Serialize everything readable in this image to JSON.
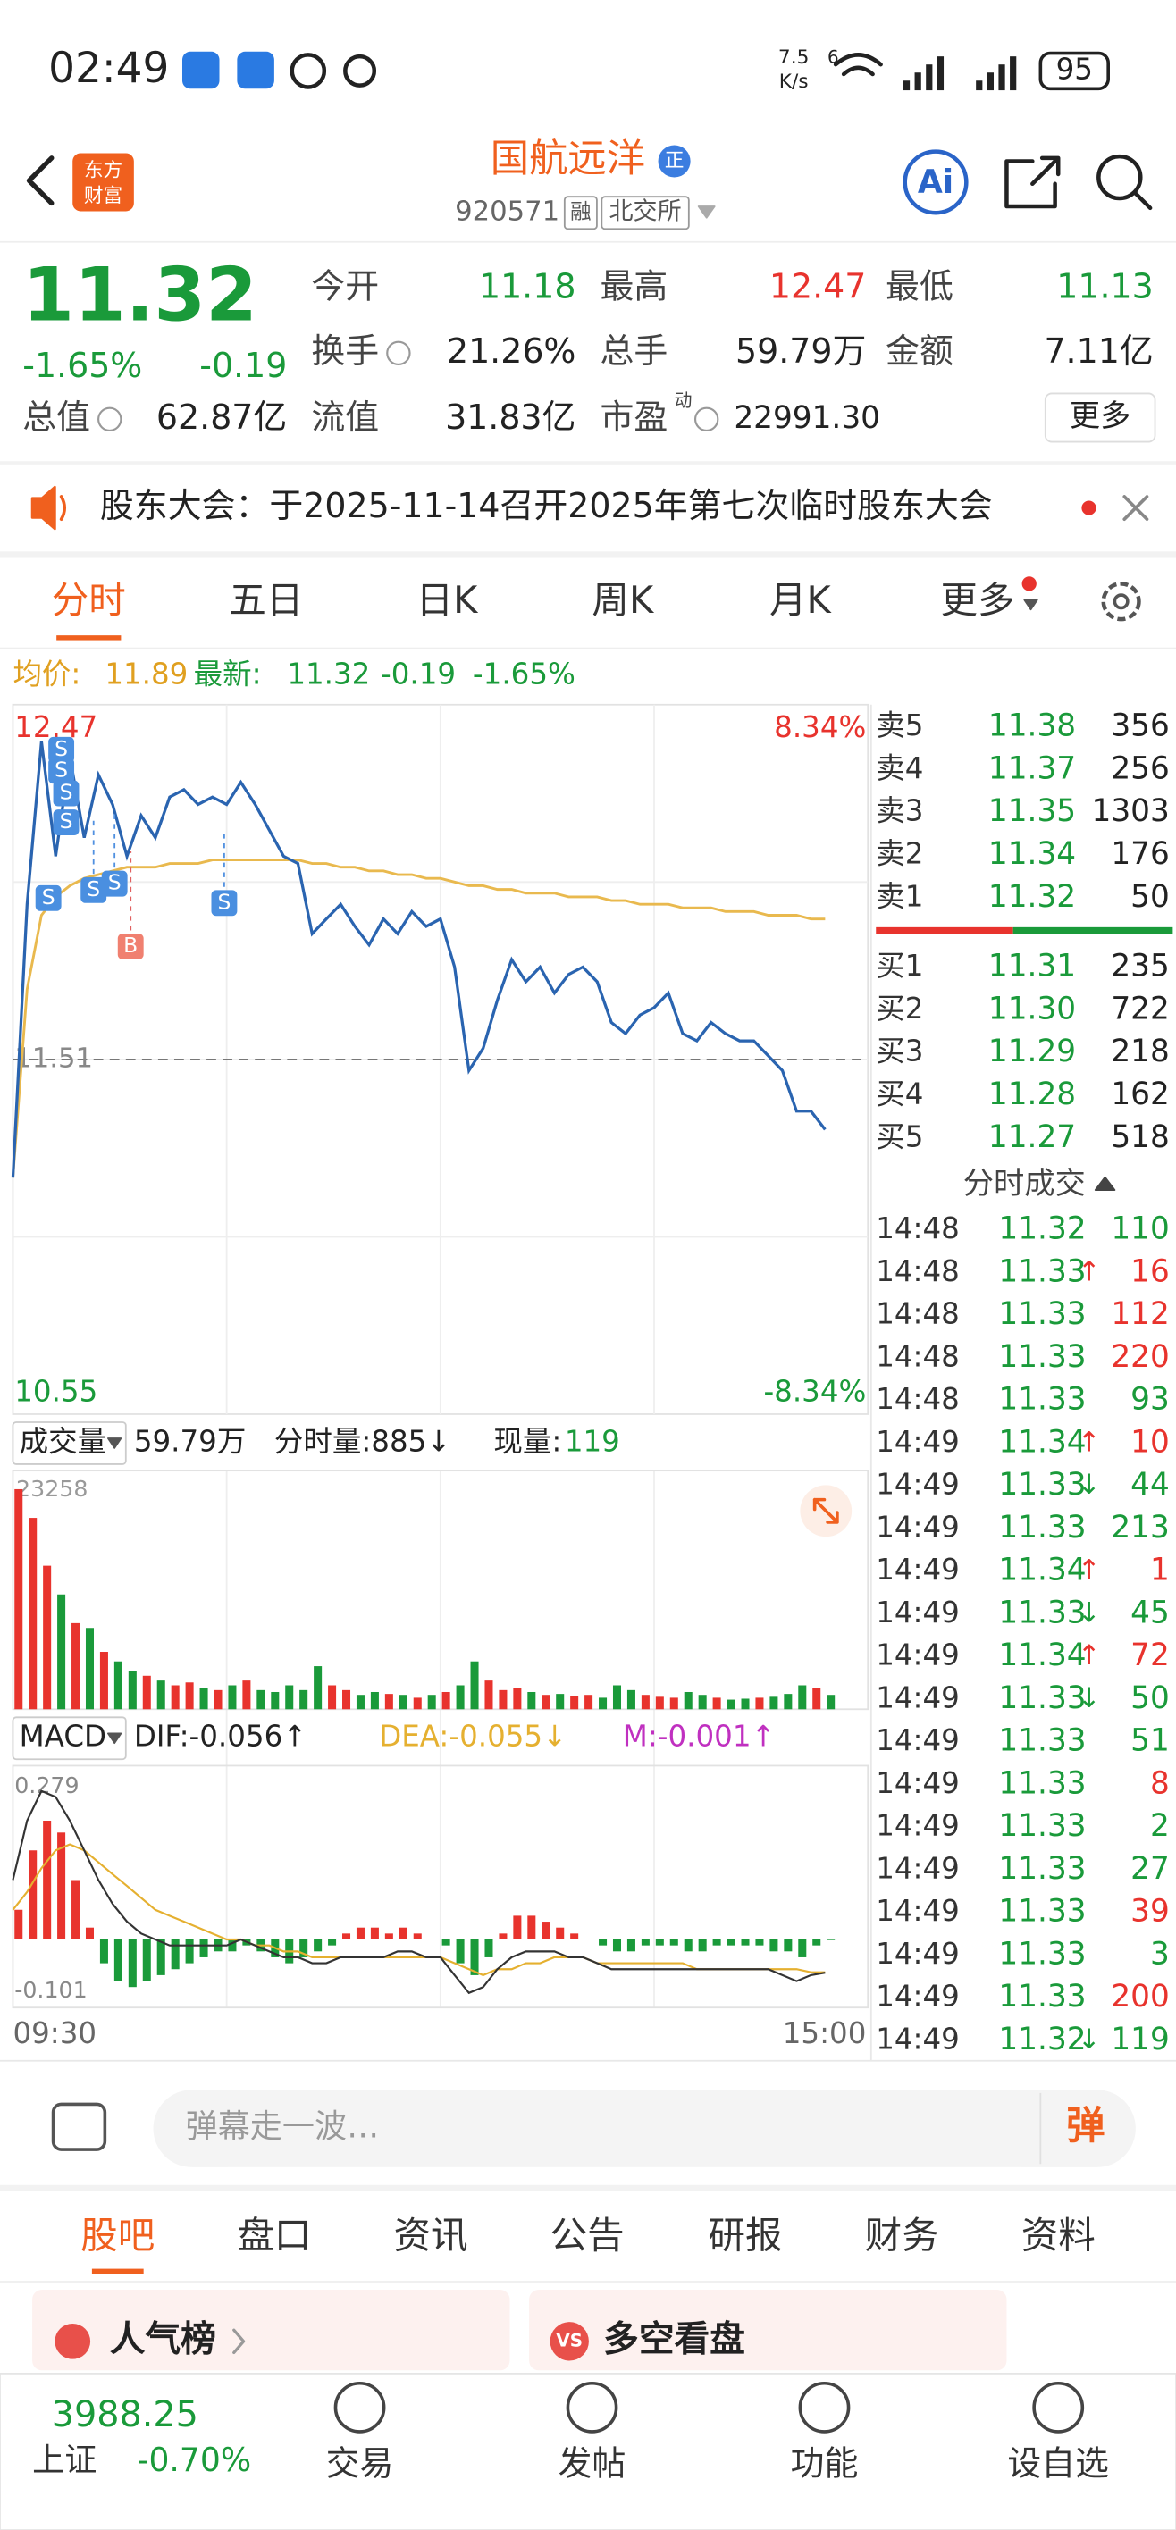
{
  "status_bar": {
    "time": "02:49",
    "speed": "7.5",
    "speed_unit": "K/s",
    "wifi_label": "6",
    "battery": "95"
  },
  "header": {
    "logo": [
      "东方",
      "财富"
    ],
    "title": "国航远洋",
    "badge": "正",
    "code": "920571",
    "tags": [
      "融",
      "北交所"
    ],
    "ai": "Ai"
  },
  "quote": {
    "price": "11.32",
    "change_pct": "-1.65%",
    "change": "-0.19",
    "fields": [
      {
        "label": "今开",
        "value": "11.18"
      },
      {
        "label": "最高",
        "value": "12.47"
      },
      {
        "label": "最低",
        "value": "11.13"
      },
      {
        "label": "换手",
        "value": "21.26%"
      },
      {
        "label": "总手",
        "value": "59.79万"
      },
      {
        "label": "金额",
        "value": "7.11亿"
      },
      {
        "label": "总值",
        "value": "62.87亿"
      },
      {
        "label": "流值",
        "value": "31.83亿"
      },
      {
        "label": "市盈",
        "sup": "动",
        "value": "22991.30"
      }
    ],
    "more": "更多"
  },
  "notice": "股东大会：于2025-11-14召开2025年第七次临时股东大会",
  "tabs": [
    "分时",
    "五日",
    "日K",
    "周K",
    "月K",
    "更多"
  ],
  "info": {
    "avg_label": "均价:",
    "avg": "11.89",
    "last_label": "最新:",
    "last": "11.32",
    "change": "-0.19",
    "change_pct": "-1.65%"
  },
  "chart": {
    "ylim": [
      10.55,
      12.47
    ],
    "pct_labels": [
      "-8.34%",
      "8.34%"
    ],
    "prev_close": 11.51,
    "prices": [
      11.19,
      11.93,
      12.37,
      12.06,
      12.33,
      12.11,
      12.28,
      12.2,
      12.06,
      12.17,
      12.11,
      12.22,
      12.24,
      12.2,
      12.22,
      12.2,
      12.26,
      12.2,
      12.13,
      12.06,
      12.04,
      11.85,
      11.89,
      11.93,
      11.87,
      11.82,
      11.89,
      11.85,
      11.91,
      11.87,
      11.89,
      11.76,
      11.48,
      11.54,
      11.67,
      11.78,
      11.72,
      11.76,
      11.69,
      11.74,
      11.76,
      11.72,
      11.61,
      11.58,
      11.63,
      11.65,
      11.69,
      11.58,
      11.56,
      11.61,
      11.58,
      11.56,
      11.56,
      11.52,
      11.48,
      11.37,
      11.37,
      11.32
    ],
    "avg": [
      11.19,
      11.7,
      11.9,
      11.95,
      11.98,
      12.0,
      12.01,
      12.02,
      12.03,
      12.03,
      12.03,
      12.04,
      12.04,
      12.04,
      12.05,
      12.05,
      12.05,
      12.05,
      12.05,
      12.05,
      12.05,
      12.04,
      12.04,
      12.03,
      12.03,
      12.02,
      12.02,
      12.01,
      12.01,
      12.0,
      12.0,
      11.99,
      11.98,
      11.98,
      11.97,
      11.97,
      11.96,
      11.96,
      11.96,
      11.95,
      11.95,
      11.95,
      11.94,
      11.94,
      11.93,
      11.93,
      11.93,
      11.92,
      11.92,
      11.92,
      11.91,
      11.91,
      11.91,
      11.9,
      11.9,
      11.9,
      11.89,
      11.89
    ],
    "markers": [
      "S",
      "S",
      "S",
      "S",
      "S",
      "S",
      "S",
      "S",
      "B"
    ],
    "volume_header": {
      "label": "成交量",
      "total": "59.79万",
      "minute": "分时量:885↓",
      "now_label": "现量:",
      "now": "119"
    },
    "volume_max": 23258,
    "volume": [
      23000,
      20000,
      15000,
      12000,
      9000,
      8500,
      6000,
      5000,
      4000,
      3500,
      3000,
      2500,
      2800,
      2200,
      2000,
      2500,
      3000,
      2000,
      1800,
      2500,
      2000,
      4500,
      2500,
      2000,
      1500,
      1800,
      1600,
      1500,
      1200,
      1500,
      1800,
      2500,
      5000,
      3000,
      2000,
      2200,
      1800,
      1500,
      1600,
      1400,
      1500,
      1200,
      2500,
      2000,
      1500,
      1300,
      1200,
      1800,
      1500,
      1200,
      1000,
      1100,
      1200,
      1300,
      1600,
      2500,
      2200,
      1500
    ],
    "macd_header": {
      "label": "MACD",
      "dif": "DIF:-0.056↑",
      "dea": "DEA:-0.055↓",
      "m": "M:-0.001↑"
    },
    "macd_lim": [
      -0.101,
      0.279
    ],
    "macd": [
      0.05,
      0.15,
      0.2,
      0.18,
      0.1,
      0.02,
      -0.04,
      -0.07,
      -0.08,
      -0.07,
      -0.06,
      -0.05,
      -0.04,
      -0.03,
      -0.02,
      -0.02,
      -0.01,
      -0.02,
      -0.03,
      -0.04,
      -0.03,
      -0.02,
      -0.01,
      0.01,
      0.02,
      0.02,
      0.01,
      0.02,
      0.01,
      0.0,
      -0.01,
      -0.04,
      -0.06,
      -0.03,
      0.01,
      0.04,
      0.04,
      0.03,
      0.02,
      0.01,
      0.0,
      -0.01,
      -0.02,
      -0.02,
      -0.01,
      -0.01,
      -0.01,
      -0.02,
      -0.02,
      -0.01,
      -0.01,
      -0.01,
      -0.01,
      -0.02,
      -0.02,
      -0.03,
      -0.01,
      -0.001
    ],
    "dif": [
      0.1,
      0.2,
      0.25,
      0.24,
      0.2,
      0.15,
      0.1,
      0.06,
      0.03,
      0.01,
      0.0,
      -0.01,
      -0.01,
      -0.01,
      -0.01,
      -0.01,
      0.0,
      -0.01,
      -0.02,
      -0.03,
      -0.03,
      -0.04,
      -0.04,
      -0.03,
      -0.03,
      -0.03,
      -0.03,
      -0.02,
      -0.02,
      -0.03,
      -0.03,
      -0.06,
      -0.09,
      -0.08,
      -0.05,
      -0.03,
      -0.02,
      -0.02,
      -0.02,
      -0.03,
      -0.03,
      -0.04,
      -0.05,
      -0.05,
      -0.05,
      -0.05,
      -0.05,
      -0.05,
      -0.05,
      -0.05,
      -0.05,
      -0.05,
      -0.05,
      -0.05,
      -0.06,
      -0.07,
      -0.06,
      -0.056
    ],
    "dea": [
      0.05,
      0.08,
      0.12,
      0.15,
      0.16,
      0.15,
      0.13,
      0.11,
      0.09,
      0.07,
      0.05,
      0.04,
      0.03,
      0.02,
      0.01,
      0.0,
      0.0,
      -0.01,
      -0.01,
      -0.02,
      -0.02,
      -0.03,
      -0.03,
      -0.03,
      -0.03,
      -0.03,
      -0.03,
      -0.03,
      -0.03,
      -0.03,
      -0.03,
      -0.04,
      -0.05,
      -0.06,
      -0.05,
      -0.05,
      -0.04,
      -0.04,
      -0.03,
      -0.03,
      -0.03,
      -0.04,
      -0.04,
      -0.04,
      -0.04,
      -0.04,
      -0.04,
      -0.04,
      -0.05,
      -0.05,
      -0.05,
      -0.05,
      -0.05,
      -0.05,
      -0.05,
      -0.05,
      -0.055,
      -0.055
    ],
    "times": [
      "09:30",
      "15:00"
    ]
  },
  "order_book": {
    "sells": [
      {
        "label": "卖5",
        "price": "11.38",
        "volume": "356"
      },
      {
        "label": "卖4",
        "price": "11.37",
        "volume": "256"
      },
      {
        "label": "卖3",
        "price": "11.35",
        "volume": "1303"
      },
      {
        "label": "卖2",
        "price": "11.34",
        "volume": "176"
      },
      {
        "label": "卖1",
        "price": "11.32",
        "volume": "50"
      }
    ],
    "buys": [
      {
        "label": "买1",
        "price": "11.31",
        "volume": "235"
      },
      {
        "label": "买2",
        "price": "11.30",
        "volume": "722"
      },
      {
        "label": "买3",
        "price": "11.29",
        "volume": "218"
      },
      {
        "label": "买4",
        "price": "11.28",
        "volume": "162"
      },
      {
        "label": "买5",
        "price": "11.27",
        "volume": "518"
      }
    ]
  },
  "trades_title": "分时成交",
  "trades": [
    {
      "time": "14:48",
      "price": "11.32",
      "volume": "110",
      "color": "#1a9a3a"
    },
    {
      "time": "14:48",
      "price": "11.33",
      "arrow": "↑",
      "volume": "16",
      "color": "#e8332d"
    },
    {
      "time": "14:48",
      "price": "11.33",
      "volume": "112",
      "color": "#e8332d"
    },
    {
      "time": "14:48",
      "price": "11.33",
      "volume": "220",
      "color": "#e8332d"
    },
    {
      "time": "14:48",
      "price": "11.33",
      "volume": "93",
      "color": "#1a9a3a"
    },
    {
      "time": "14:49",
      "price": "11.34",
      "arrow": "↑",
      "volume": "10",
      "color": "#e8332d"
    },
    {
      "time": "14:49",
      "price": "11.33",
      "arrow": "↓",
      "volume": "44",
      "color": "#1a9a3a"
    },
    {
      "time": "14:49",
      "price": "11.33",
      "volume": "213",
      "color": "#1a9a3a"
    },
    {
      "time": "14:49",
      "price": "11.34",
      "arrow": "↑",
      "volume": "1",
      "color": "#e8332d"
    },
    {
      "time": "14:49",
      "price": "11.33",
      "arrow": "↓",
      "volume": "45",
      "color": "#1a9a3a"
    },
    {
      "time": "14:49",
      "price": "11.34",
      "arrow": "↑",
      "volume": "72",
      "color": "#e8332d"
    },
    {
      "time": "14:49",
      "price": "11.33",
      "arrow": "↓",
      "volume": "50",
      "color": "#1a9a3a"
    },
    {
      "time": "14:49",
      "price": "11.33",
      "volume": "51",
      "color": "#1a9a3a"
    },
    {
      "time": "14:49",
      "price": "11.33",
      "volume": "8",
      "color": "#e8332d"
    },
    {
      "time": "14:49",
      "price": "11.33",
      "volume": "2",
      "color": "#1a9a3a"
    },
    {
      "time": "14:49",
      "price": "11.33",
      "volume": "27",
      "color": "#1a9a3a"
    },
    {
      "time": "14:49",
      "price": "11.33",
      "volume": "39",
      "color": "#e8332d"
    },
    {
      "time": "14:49",
      "price": "11.33",
      "volume": "3",
      "color": "#1a9a3a"
    },
    {
      "time": "14:49",
      "price": "11.33",
      "volume": "200",
      "color": "#e8332d"
    },
    {
      "time": "14:49",
      "price": "11.32",
      "arrow": "↓",
      "volume": "119",
      "color": "#1a9a3a"
    }
  ],
  "comment": {
    "placeholder": "弹幕走一波…",
    "button": "弹"
  },
  "section_tabs": [
    "股吧",
    "盘口",
    "资讯",
    "公告",
    "研报",
    "财务",
    "资料"
  ],
  "cards": [
    {
      "icon": "",
      "title": "人气榜"
    },
    {
      "icon": "VS",
      "title": "多空看盘"
    }
  ],
  "footer": {
    "index_value": "3988.25",
    "index_name": "上证",
    "index_change": "-0.70%",
    "nav": [
      "交易",
      "发帖",
      "功能",
      "设自选"
    ]
  }
}
